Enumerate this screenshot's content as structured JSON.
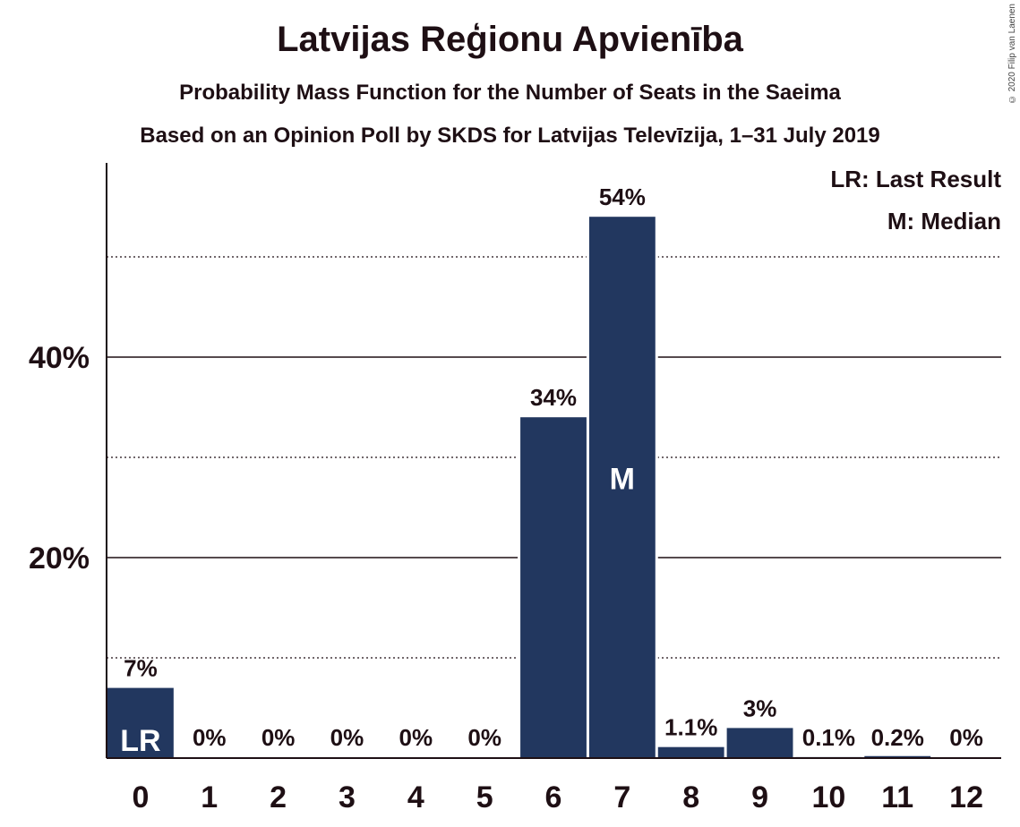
{
  "title": "Latvijas Reģionu Apvienība",
  "subtitle": "Probability Mass Function for the Number of Seats in the Saeima",
  "subtitle2": "Based on an Opinion Poll by SKDS for Latvijas Televīzija, 1–31 July 2019",
  "copyright": "© 2020 Filip van Laenen",
  "colors": {
    "bar": "#22375f",
    "text": "#1e0f14",
    "grid": "#1e0f14"
  },
  "chart_data": {
    "type": "bar",
    "categories": [
      "0",
      "1",
      "2",
      "3",
      "4",
      "5",
      "6",
      "7",
      "8",
      "9",
      "10",
      "11",
      "12"
    ],
    "values": [
      7,
      0,
      0,
      0,
      0,
      0,
      34,
      54,
      1.1,
      3,
      0.1,
      0.2,
      0
    ],
    "value_labels": [
      "7%",
      "0%",
      "0%",
      "0%",
      "0%",
      "0%",
      "34%",
      "54%",
      "1.1%",
      "3%",
      "0.1%",
      "0.2%",
      "0%"
    ],
    "yticks": [
      20,
      40
    ],
    "ytick_labels": [
      "20%",
      "40%"
    ],
    "minor_gridlines": [
      10,
      30,
      50
    ],
    "ylim": [
      0,
      59
    ],
    "markers": [
      {
        "category": "0",
        "text": "LR"
      },
      {
        "category": "7",
        "text": "M"
      }
    ],
    "legend": [
      "LR: Last Result",
      "M: Median"
    ],
    "legend_position": "top-right",
    "xlabel": "",
    "ylabel": ""
  }
}
